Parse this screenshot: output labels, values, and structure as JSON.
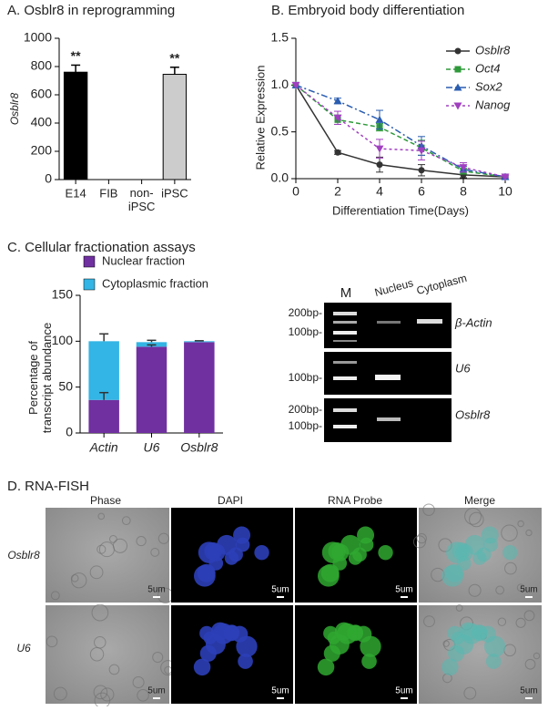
{
  "chart_data": [
    {
      "type": "bar",
      "title": "A. Osblr8 in reprogramming",
      "y_label": "Osblr8",
      "categories": [
        "E14",
        "FIB",
        "non-\niPSC",
        "iPSC"
      ],
      "values": [
        760,
        0,
        0,
        745
      ],
      "errors": [
        50,
        0,
        0,
        50
      ],
      "colors": [
        "#000000",
        "#000000",
        "#000000",
        "#cccccc"
      ],
      "significance": [
        "**",
        null,
        null,
        "**"
      ],
      "ylim": [
        0,
        1000
      ],
      "yticks": [
        0,
        200,
        400,
        600,
        800,
        1000
      ]
    },
    {
      "type": "line",
      "title": "B. Embryoid body differentiation",
      "x_label": "Differentiation Time(Days)",
      "y_label": "Relative Expression",
      "x": [
        0,
        2,
        4,
        6,
        8,
        10
      ],
      "series": [
        {
          "name": "Osblr8",
          "color": "#333333",
          "marker": "circle",
          "dash": "none",
          "values": [
            1,
            0.28,
            0.15,
            0.09,
            0.04,
            0.02
          ],
          "errors": [
            0,
            0.02,
            0.08,
            0.06,
            0.03,
            0.01
          ]
        },
        {
          "name": "Oct4",
          "color": "#2e9a3a",
          "marker": "square",
          "dash": "5,3",
          "values": [
            1,
            0.63,
            0.55,
            0.33,
            0.08,
            0.02
          ],
          "errors": [
            0,
            0.05,
            0.04,
            0.08,
            0.03,
            0.01
          ]
        },
        {
          "name": "Sox2",
          "color": "#2a5db0",
          "marker": "triangle",
          "dash": "7,3,2,3",
          "values": [
            1,
            0.83,
            0.63,
            0.35,
            0.1,
            0.02
          ],
          "errors": [
            0,
            0.03,
            0.1,
            0.1,
            0.03,
            0.01
          ]
        },
        {
          "name": "Nanog",
          "color": "#a040c0",
          "marker": "triangle-down",
          "dash": "3,3",
          "values": [
            1,
            0.65,
            0.32,
            0.3,
            0.12,
            0.02
          ],
          "errors": [
            0,
            0.07,
            0.1,
            0.1,
            0.05,
            0.01
          ]
        }
      ],
      "xlim": [
        0,
        10
      ],
      "xticks": [
        0,
        2,
        4,
        6,
        8,
        10
      ],
      "ylim": [
        0,
        1.5
      ],
      "yticks": [
        {
          "value": 0,
          "label": "0.0"
        },
        0.5,
        {
          "value": 1,
          "label": "1.0"
        },
        1.5
      ],
      "legend": "upper right"
    },
    {
      "type": "stacked_bar",
      "title": "C. Cellular fractionation assays",
      "y_label": "Percentage of\ntranscript abundance",
      "categories": [
        "Actin",
        "U6",
        "Osblr8"
      ],
      "series": [
        {
          "name": "Nuclear fraction",
          "color": "#7030a0",
          "values": [
            36,
            94,
            99
          ],
          "errors": [
            8,
            2,
            0
          ]
        },
        {
          "name": "Cytoplasmic fraction",
          "color": "#33b5e5",
          "values": [
            64,
            5,
            1
          ],
          "errors": [
            8,
            2,
            0.5
          ]
        }
      ],
      "ylim": [
        0,
        150
      ],
      "yticks": [
        0,
        50,
        100,
        150
      ],
      "legend": "upper left"
    }
  ],
  "gel": {
    "lanes": [
      "M",
      "Nucleus",
      "Cytoplasm"
    ],
    "rows": [
      {
        "gene": "β-Actin",
        "ladder": [
          "200bp-",
          "100bp-"
        ]
      },
      {
        "gene": "U6",
        "ladder": [
          "100bp-"
        ]
      },
      {
        "gene": "Osblr8",
        "ladder": [
          "200bp-",
          "100bp-"
        ]
      }
    ]
  },
  "fish": {
    "title": "D. RNA-FISH",
    "columns": [
      "Phase",
      "DAPI",
      "RNA Probe",
      "Merge"
    ],
    "rows": [
      "Osblr8",
      "U6"
    ],
    "scale": "5um"
  }
}
